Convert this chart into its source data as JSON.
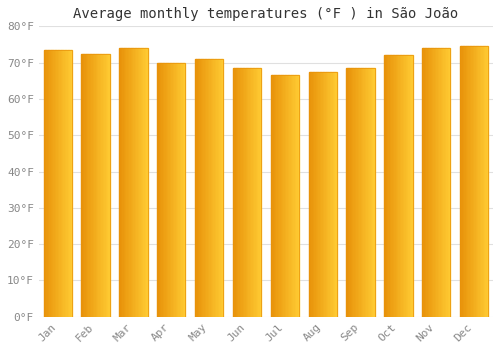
{
  "title": "Average monthly temperatures (°F ) in São João",
  "months": [
    "Jan",
    "Feb",
    "Mar",
    "Apr",
    "May",
    "Jun",
    "Jul",
    "Aug",
    "Sep",
    "Oct",
    "Nov",
    "Dec"
  ],
  "values": [
    73.5,
    72.5,
    74.0,
    70.0,
    71.0,
    68.5,
    66.5,
    67.5,
    68.5,
    72.0,
    74.0,
    74.5
  ],
  "bar_color_left": "#E8920A",
  "bar_color_right": "#FFCC33",
  "bar_color_mid": "#FFA800",
  "background_color": "#FFFFFF",
  "plot_bg_color": "#FFFFFF",
  "ylim": [
    0,
    80
  ],
  "yticks": [
    0,
    10,
    20,
    30,
    40,
    50,
    60,
    70,
    80
  ],
  "ytick_labels": [
    "0°F",
    "10°F",
    "20°F",
    "30°F",
    "40°F",
    "50°F",
    "60°F",
    "70°F",
    "80°F"
  ],
  "title_fontsize": 10,
  "tick_fontsize": 8,
  "grid_color": "#E0E0E0",
  "tick_color": "#888888",
  "bar_width": 0.75,
  "n_gradient_steps": 20
}
